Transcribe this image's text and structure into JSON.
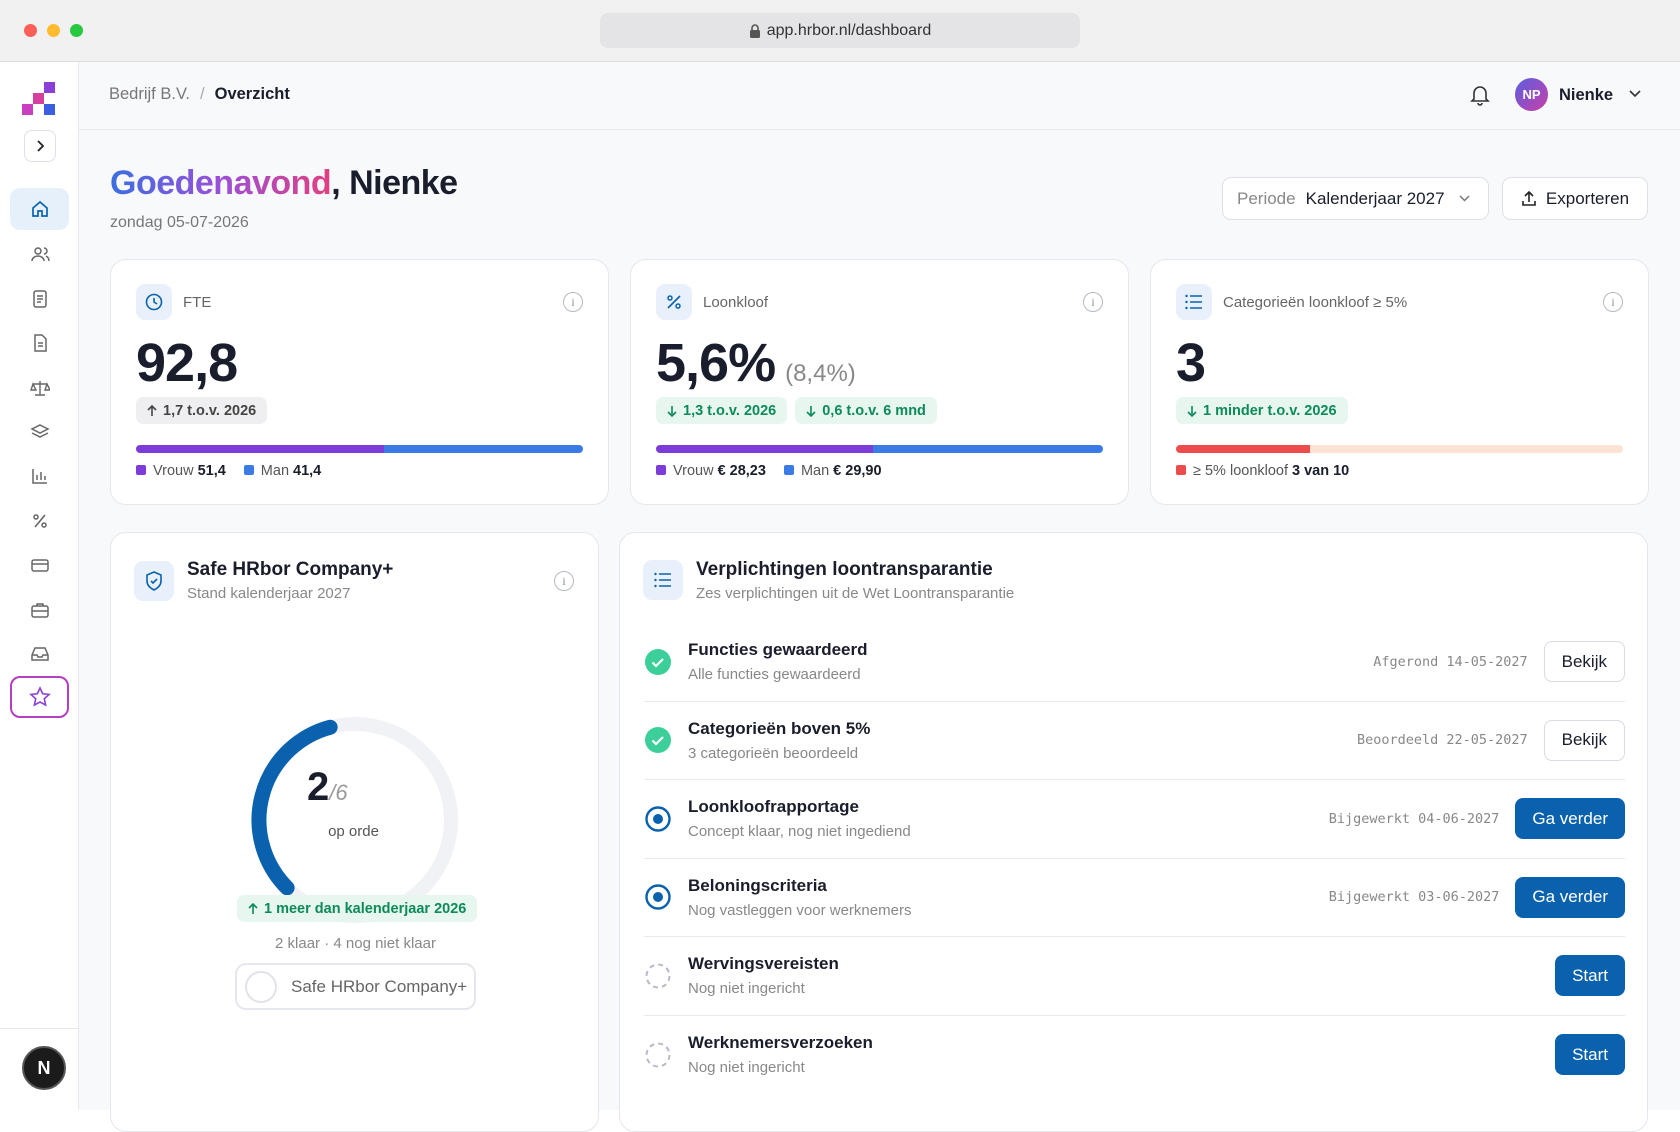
{
  "browser": {
    "url": "app.hrbor.nl/dashboard"
  },
  "header": {
    "breadcrumb": [
      "Bedrijf B.V.",
      "Overzicht"
    ],
    "user": {
      "initials": "NP",
      "name": "Nienke"
    }
  },
  "greeting": {
    "salutation": "Goedenavond",
    "name": ", Nienke",
    "date": "zondag 05-07-2026"
  },
  "period": {
    "label": "Periode",
    "value": "Kalenderjaar 2027"
  },
  "export": "Exporteren",
  "sidebar": {
    "avatar": "N"
  },
  "cards": [
    {
      "title": "FTE",
      "value": "92,8",
      "badges": [
        "1,7 t.o.v. 2026"
      ],
      "legend": [
        {
          "label": "Vrouw",
          "value": "51,4"
        },
        {
          "label": "Man",
          "value": "41,4"
        }
      ]
    },
    {
      "title": "Loonkloof",
      "value": "5,6%",
      "secondary": "(8,4%)",
      "badges": [
        "1,3 t.o.v. 2026",
        "0,6 t.o.v. 6 mnd"
      ],
      "legend": [
        {
          "label": "Vrouw",
          "value": "€ 28,23"
        },
        {
          "label": "Man",
          "value": "€ 29,90"
        }
      ]
    },
    {
      "title": "Categorieën loonkloof ≥ 5%",
      "value": "3",
      "badges": [
        "1 minder t.o.v. 2026"
      ],
      "legend": [
        {
          "label": "≥ 5% loonkloof",
          "value": "3 van 10"
        }
      ]
    }
  ],
  "compliance": {
    "title": "Safe HRbor Company+",
    "subtitle": "Stand kalenderjaar 2027",
    "count": "2",
    "total": "/6",
    "status": "op orde",
    "badge": "1 meer dan kalenderjaar 2026",
    "summary": "2 klaar · 4 nog niet klaar",
    "button": "Safe HRbor Company+"
  },
  "obligations": {
    "title": "Verplichtingen loontransparantie",
    "subtitle": "Zes verplichtingen uit de Wet Loontransparantie",
    "items": [
      {
        "title": "Functies gewaardeerd",
        "description": "Alle functies gewaardeerd",
        "status": "Afgerond 14-05-2027",
        "action": "Bekijk",
        "state": "done"
      },
      {
        "title": "Categorieën boven 5%",
        "description": "3 categorieën beoordeeld",
        "status": "Beoordeeld 22-05-2027",
        "action": "Bekijk",
        "state": "done"
      },
      {
        "title": "Loonkloofrapportage",
        "description": "Concept klaar, nog niet ingediend",
        "status": "Bijgewerkt 04-06-2027",
        "action": "Ga verder",
        "state": "in-progress"
      },
      {
        "title": "Beloningscriteria",
        "description": "Nog vastleggen voor werknemers",
        "status": "Bijgewerkt 03-06-2027",
        "action": "Ga verder",
        "state": "in-progress"
      },
      {
        "title": "Wervingsvereisten",
        "description": "Nog niet ingericht",
        "action": "Start",
        "state": "todo"
      },
      {
        "title": "Werknemersverzoeken",
        "description": "Nog niet ingericht",
        "action": "Start",
        "state": "todo"
      }
    ]
  }
}
